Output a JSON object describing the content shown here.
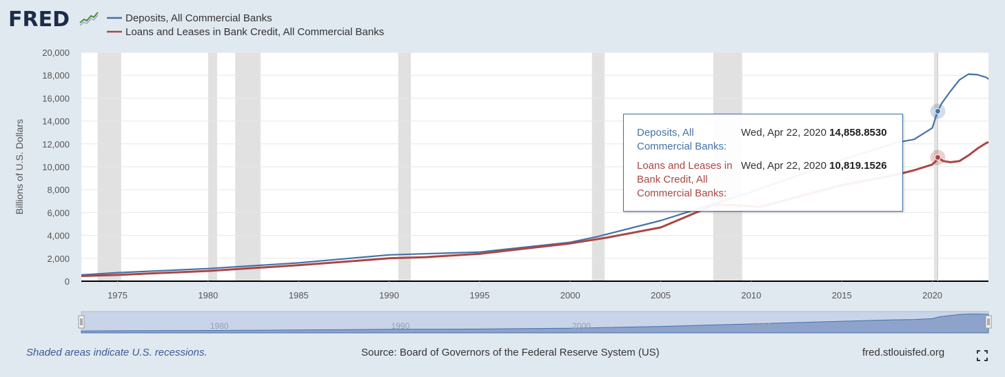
{
  "header": {
    "logo_text": "FRED",
    "logo_icon": "chart-trend-icon"
  },
  "legend": {
    "items": [
      {
        "label": "Deposits, All Commercial Banks",
        "color": "#4572a7"
      },
      {
        "label": "Loans and Leases in Bank Credit, All Commercial Banks",
        "color": "#aa4643"
      }
    ]
  },
  "chart_data": {
    "type": "line",
    "title": "",
    "xlabel": "",
    "ylabel": "Billions of U.S. Dollars",
    "xlim": [
      1973.0,
      2023.1
    ],
    "ylim": [
      0,
      20000
    ],
    "x_ticks": [
      "1975",
      "1980",
      "1985",
      "1990",
      "1995",
      "2000",
      "2005",
      "2010",
      "2015",
      "2020"
    ],
    "y_ticks": [
      "0",
      "2,000",
      "4,000",
      "6,000",
      "8,000",
      "10,000",
      "12,000",
      "14,000",
      "16,000",
      "18,000",
      "20,000"
    ],
    "recessions": [
      [
        1973.9,
        1975.2
      ],
      [
        1980.0,
        1980.5
      ],
      [
        1981.5,
        1982.9
      ],
      [
        1990.5,
        1991.2
      ],
      [
        2001.2,
        2001.9
      ],
      [
        2007.9,
        2009.5
      ],
      [
        2020.1,
        2020.3
      ]
    ],
    "series": [
      {
        "name": "Deposits, All Commercial Banks",
        "color": "#4572a7",
        "x": [
          1973.0,
          1975.0,
          1980.0,
          1985.0,
          1990.0,
          1995.0,
          2000.0,
          2001.5,
          2005.0,
          2008.0,
          2010.0,
          2015.0,
          2018.0,
          2019.0,
          2020.0,
          2020.2,
          2020.3,
          2020.5,
          2021.0,
          2021.5,
          2022.0,
          2022.5,
          2023.0,
          2023.1
        ],
        "values": [
          550,
          750,
          1100,
          1600,
          2300,
          2550,
          3400,
          3900,
          5300,
          6800,
          7800,
          10600,
          12100,
          12400,
          13400,
          14400,
          14860,
          15500,
          16600,
          17600,
          18100,
          18050,
          17800,
          17650
        ]
      },
      {
        "name": "Loans and Leases in Bank Credit, All Commercial Banks",
        "color": "#aa4643",
        "x": [
          1973.0,
          1975.0,
          1980.0,
          1985.0,
          1990.0,
          1992.0,
          1995.0,
          2000.0,
          2002.0,
          2005.0,
          2008.0,
          2009.5,
          2010.5,
          2015.0,
          2018.0,
          2019.0,
          2020.0,
          2020.2,
          2020.3,
          2020.6,
          2021.0,
          2021.5,
          2022.0,
          2022.5,
          2023.0,
          2023.1
        ],
        "values": [
          450,
          550,
          900,
          1400,
          2000,
          2100,
          2400,
          3300,
          3800,
          4700,
          6700,
          6600,
          6500,
          8400,
          9300,
          9700,
          10200,
          10500,
          10820,
          10500,
          10400,
          10500,
          11000,
          11600,
          12100,
          12150
        ]
      }
    ],
    "navigator_ticks": [
      "1980",
      "1990",
      "2000",
      "2010",
      "2020"
    ]
  },
  "tooltip": {
    "rows": [
      {
        "series": "Deposits, All Commercial Banks:",
        "date": "Wed, Apr 22, 2020",
        "value": "14,858.8530"
      },
      {
        "series": "Loans and Leases in Bank Credit, All Commercial Banks:",
        "date": "Wed, Apr 22, 2020",
        "value": "10,819.1526"
      }
    ],
    "x": 2020.3
  },
  "footer": {
    "note": "Shaded areas indicate U.S. recessions.",
    "source": "Source: Board of Governors of the Federal Reserve System (US)",
    "site": "fred.stlouisfed.org",
    "fullscreen_icon": "fullscreen-icon"
  }
}
